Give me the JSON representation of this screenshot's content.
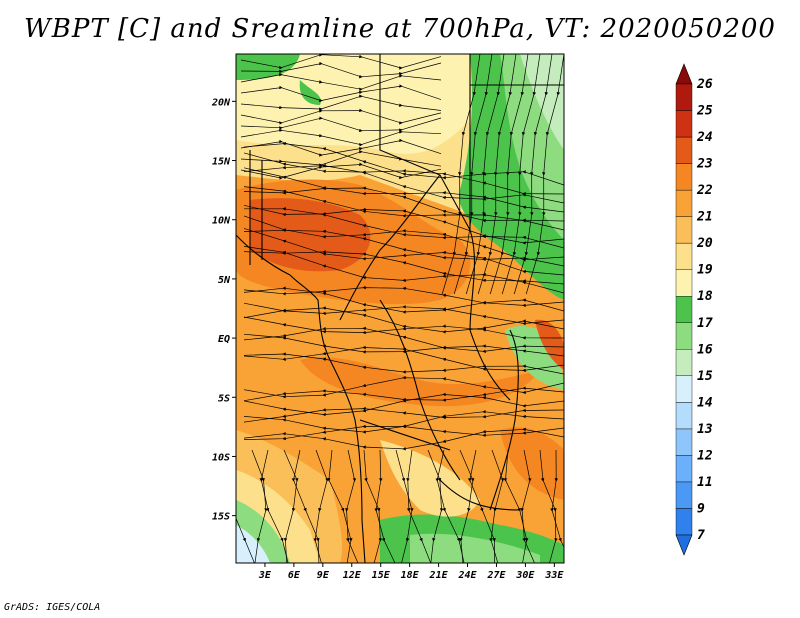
{
  "title": "WBPT [C] and Sreamline at 700hPa, VT: 2020050200",
  "footer": "GrADS: IGES/COLA",
  "map": {
    "lat_labels": [
      "20N",
      "15N",
      "10N",
      "5N",
      "EQ",
      "5S",
      "10S",
      "15S"
    ],
    "lat_values": [
      20,
      15,
      10,
      5,
      0,
      -5,
      -10,
      -15
    ],
    "lon_labels": [
      "3E",
      "6E",
      "9E",
      "12E",
      "15E",
      "18E",
      "21E",
      "24E",
      "27E",
      "30E",
      "33E"
    ],
    "lon_values": [
      3,
      6,
      9,
      12,
      15,
      18,
      21,
      24,
      27,
      30,
      33
    ],
    "lon_range": [
      0,
      34
    ],
    "lat_range": [
      -19,
      24
    ]
  },
  "colorbar": {
    "labels": [
      "7",
      "9",
      "11",
      "12",
      "13",
      "14",
      "15",
      "16",
      "17",
      "18",
      "19",
      "20",
      "21",
      "22",
      "23",
      "24",
      "25",
      "26"
    ],
    "colors": [
      "#1f6fe0",
      "#2f82ee",
      "#4c99f5",
      "#6ab0fa",
      "#8ec6fc",
      "#b4dcfd",
      "#d8f0fb",
      "#c4ecbc",
      "#8edc80",
      "#4cc44c",
      "#fdf2b0",
      "#fde08c",
      "#fbbf5a",
      "#f9a235",
      "#f58722",
      "#e45a18",
      "#cf3212",
      "#b01a0e",
      "#8a0a0a"
    ]
  }
}
